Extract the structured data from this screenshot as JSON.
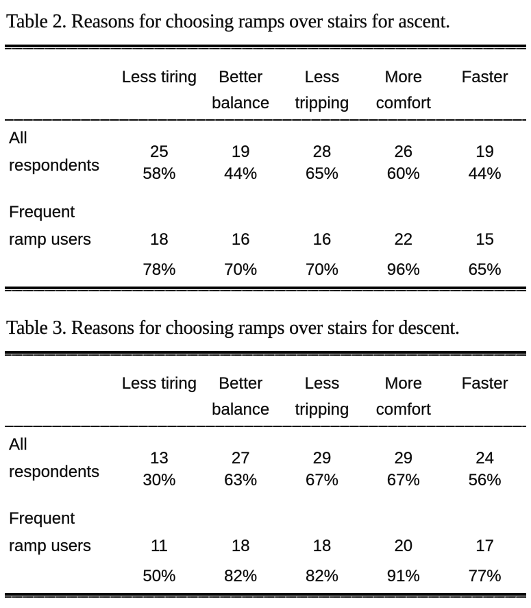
{
  "colors": {
    "ink": "#0c0c0c",
    "paper": "#ffffff"
  },
  "tables": [
    {
      "caption": "Table 2. Reasons for choosing ramps over stairs for ascent.",
      "headers": [
        {
          "line1": "Less tiring",
          "line2": ""
        },
        {
          "line1": "Better",
          "line2": "balance"
        },
        {
          "line1": "Less",
          "line2": "tripping"
        },
        {
          "line1": "More",
          "line2": "comfort"
        },
        {
          "line1": "Faster",
          "line2": ""
        }
      ],
      "groups": [
        {
          "label_line1": "All respondents",
          "label_line2": "",
          "counts": [
            "25",
            "19",
            "28",
            "26",
            "19"
          ],
          "percents": [
            "58%",
            "44%",
            "65%",
            "60%",
            "44%"
          ]
        },
        {
          "label_line1": "Frequent",
          "label_line2": "ramp users",
          "counts": [
            "18",
            "16",
            "16",
            "22",
            "15"
          ],
          "percents": [
            "78%",
            "70%",
            "70%",
            "96%",
            "65%"
          ]
        }
      ]
    },
    {
      "caption": "Table 3. Reasons for choosing ramps over stairs for descent.",
      "headers": [
        {
          "line1": "Less tiring",
          "line2": ""
        },
        {
          "line1": "Better",
          "line2": "balance"
        },
        {
          "line1": "Less",
          "line2": "tripping"
        },
        {
          "line1": "More",
          "line2": "comfort"
        },
        {
          "line1": "Faster",
          "line2": ""
        }
      ],
      "groups": [
        {
          "label_line1": "All respondents",
          "label_line2": "",
          "counts": [
            "13",
            "27",
            "29",
            "29",
            "24"
          ],
          "percents": [
            "30%",
            "63%",
            "67%",
            "67%",
            "56%"
          ]
        },
        {
          "label_line1": "Frequent",
          "label_line2": "ramp users",
          "counts": [
            "11",
            "18",
            "18",
            "20",
            "17"
          ],
          "percents": [
            "50%",
            "82%",
            "82%",
            "91%",
            "77%"
          ]
        }
      ]
    }
  ]
}
